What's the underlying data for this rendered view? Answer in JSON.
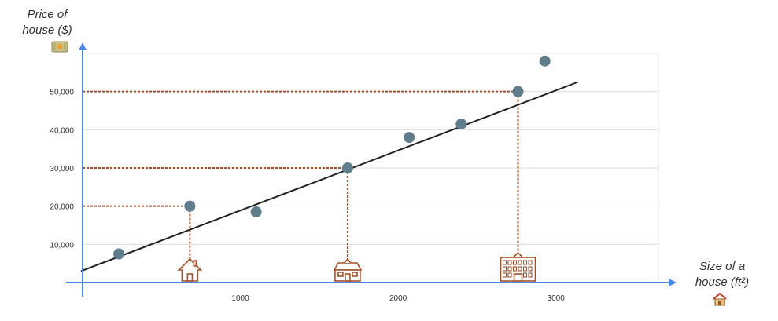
{
  "chart_data": {
    "type": "scatter",
    "y_title_lines": [
      "Price of",
      "house ($)"
    ],
    "x_title_lines": [
      "Size of a",
      "house (ft²)"
    ],
    "xlim": [
      0,
      3650
    ],
    "ylim": [
      0,
      60000
    ],
    "x_ticks": [
      1000,
      2000,
      3000
    ],
    "y_ticks": [
      10000,
      20000,
      30000,
      40000,
      50000
    ],
    "y_tick_labels": [
      "10,000",
      "20,000",
      "30,000",
      "40,000",
      "50,000"
    ],
    "grid": true,
    "points": [
      {
        "x": 230,
        "y": 7500
      },
      {
        "x": 680,
        "y": 20000
      },
      {
        "x": 1100,
        "y": 18500
      },
      {
        "x": 1680,
        "y": 30000
      },
      {
        "x": 2070,
        "y": 38000
      },
      {
        "x": 2400,
        "y": 41500
      },
      {
        "x": 2760,
        "y": 50000
      },
      {
        "x": 2930,
        "y": 58000
      }
    ],
    "trend_line": {
      "x0": -10,
      "y0": 3000,
      "x1": 3140,
      "y1": 52500
    },
    "guides": [
      {
        "x": 680,
        "y": 20000
      },
      {
        "x": 1680,
        "y": 30000
      },
      {
        "x": 2760,
        "y": 50000
      }
    ],
    "house_icons": [
      {
        "x": 680,
        "name": "small-house-icon"
      },
      {
        "x": 1680,
        "name": "medium-house-icon"
      },
      {
        "x": 2760,
        "name": "large-building-icon"
      }
    ],
    "colors": {
      "axis": "#4a86e8",
      "point": "#607d8b",
      "trend": "#222222",
      "guide": "#a0522d",
      "icon": "#a0522d"
    }
  }
}
